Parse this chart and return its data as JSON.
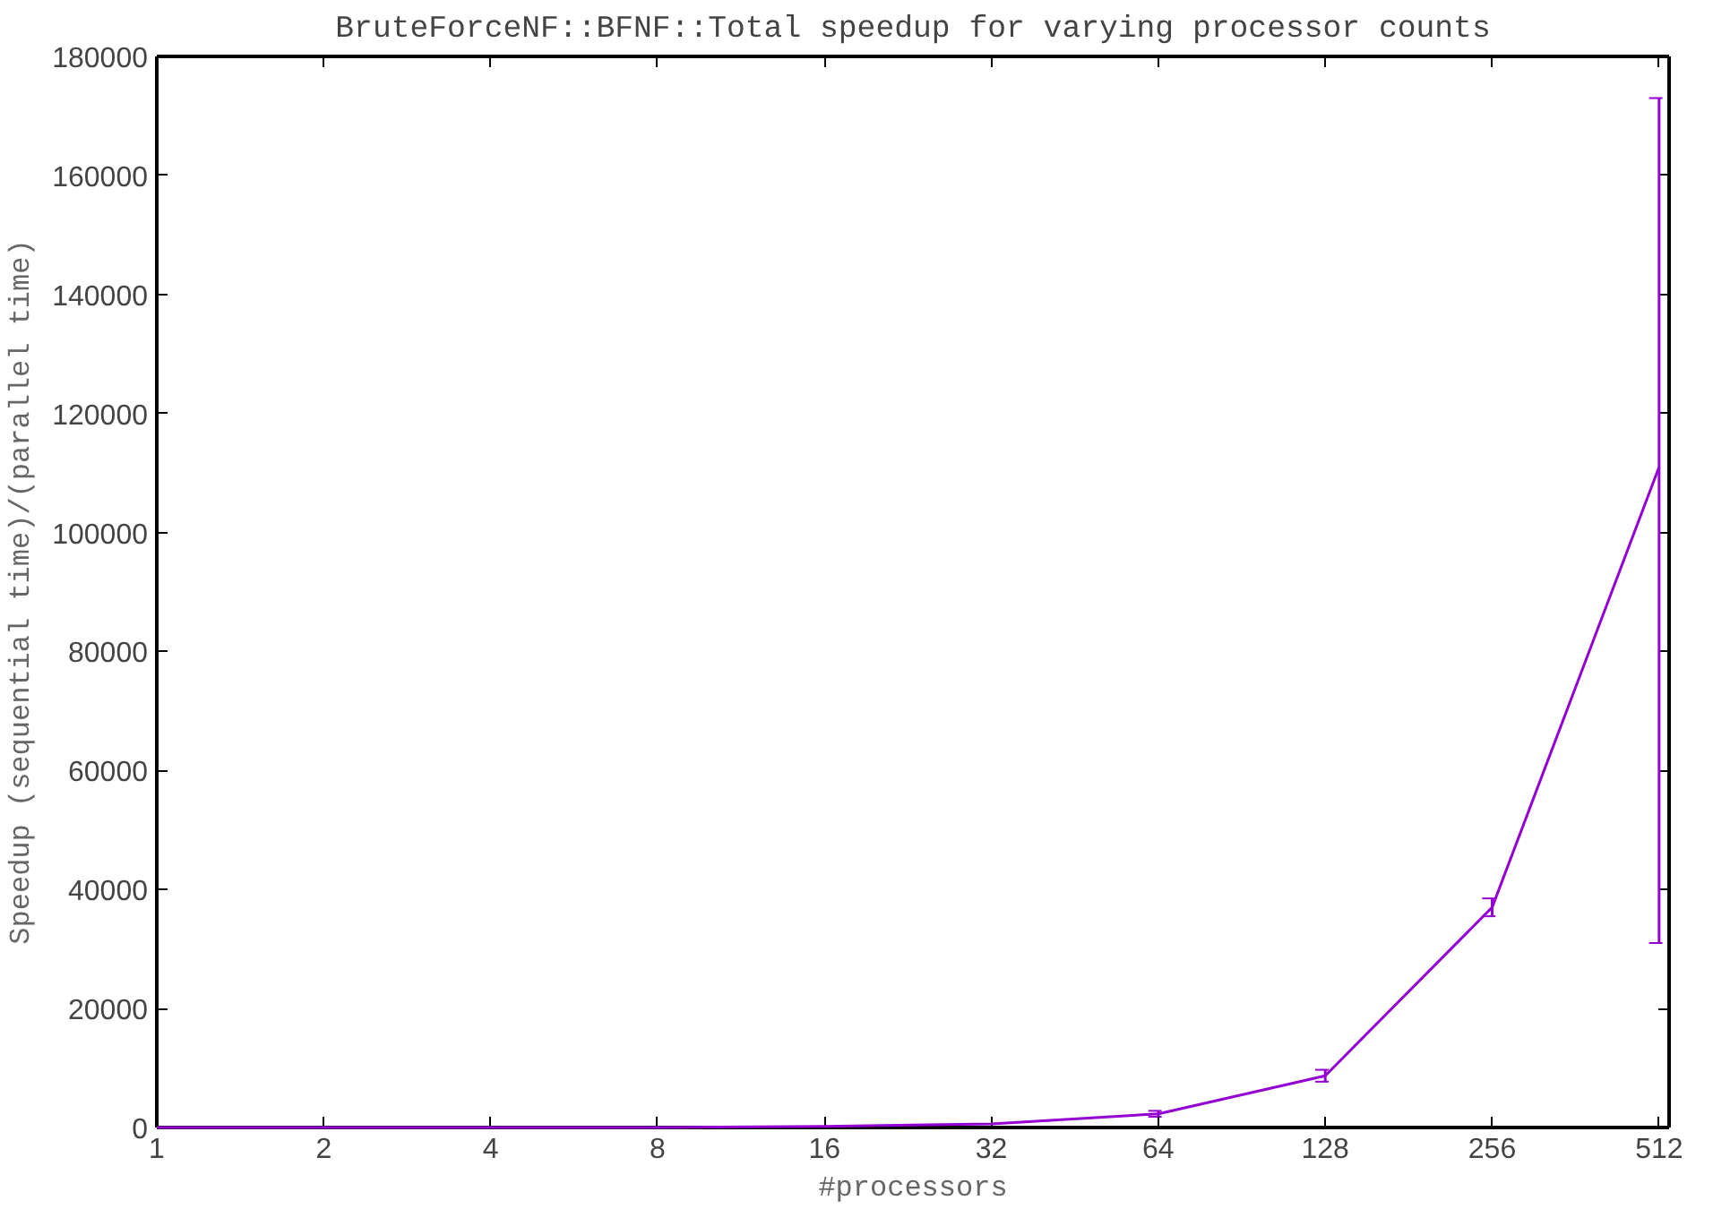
{
  "chart_data": {
    "type": "line",
    "title": "BruteForceNF::BFNF::Total speedup for varying processor counts",
    "xlabel": "#processors",
    "ylabel": "Speedup (sequential time)/(parallel time)",
    "categories": [
      "1",
      "2",
      "4",
      "8",
      "16",
      "32",
      "64",
      "128",
      "256",
      "512"
    ],
    "series": [
      {
        "color": "#9400d3",
        "values": [
          0,
          0,
          0,
          0,
          200,
          600,
          2300,
          8700,
          37000,
          111000
        ],
        "errors": [
          null,
          null,
          null,
          null,
          null,
          null,
          500,
          1000,
          1500,
          [
            31000,
            173000
          ]
        ]
      }
    ],
    "ylim": [
      0,
      180000
    ],
    "yticks": [
      0,
      20000,
      40000,
      60000,
      80000,
      100000,
      120000,
      140000,
      160000,
      180000
    ],
    "grid": false,
    "line_style": "solid"
  }
}
